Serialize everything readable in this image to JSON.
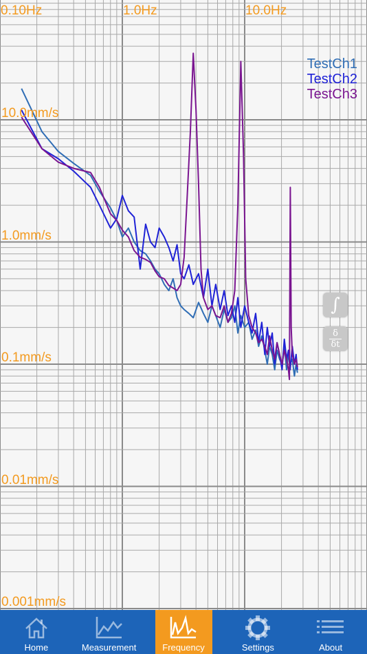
{
  "chart_data": {
    "type": "line",
    "x_scale": "log",
    "y_scale": "log",
    "xlim": [
      0.1,
      30
    ],
    "ylim": [
      0.001,
      30
    ],
    "x_ticks": [
      {
        "value": 0.1,
        "label": "0.10Hz"
      },
      {
        "value": 1.0,
        "label": "1.0Hz"
      },
      {
        "value": 10.0,
        "label": "10.0Hz"
      }
    ],
    "y_ticks": [
      {
        "value": 10.0,
        "label": "10.0mm/s"
      },
      {
        "value": 1.0,
        "label": "1.0mm/s"
      },
      {
        "value": 0.1,
        "label": "0.1mm/s"
      },
      {
        "value": 0.01,
        "label": "0.01mm/s"
      },
      {
        "value": 0.001,
        "label": "0.001mm/s"
      }
    ],
    "grid": true,
    "legend_position": "top-right",
    "series": [
      {
        "name": "TestCh1",
        "color": "#2f6db5",
        "points": [
          [
            0.15,
            18
          ],
          [
            0.22,
            8
          ],
          [
            0.3,
            5.5
          ],
          [
            0.4,
            4.4
          ],
          [
            0.55,
            3.5
          ],
          [
            0.65,
            2.6
          ],
          [
            0.8,
            1.9
          ],
          [
            0.9,
            1.5
          ],
          [
            1.0,
            1.1
          ],
          [
            1.12,
            1.3
          ],
          [
            1.25,
            1.0
          ],
          [
            1.4,
            0.85
          ],
          [
            1.55,
            0.8
          ],
          [
            1.7,
            0.7
          ],
          [
            1.85,
            0.6
          ],
          [
            2.0,
            0.55
          ],
          [
            2.2,
            0.45
          ],
          [
            2.4,
            0.4
          ],
          [
            2.6,
            0.5
          ],
          [
            2.8,
            0.35
          ],
          [
            3.0,
            0.3
          ],
          [
            3.2,
            0.28
          ],
          [
            3.5,
            0.26
          ],
          [
            3.8,
            0.24
          ],
          [
            4.2,
            0.32
          ],
          [
            4.6,
            0.26
          ],
          [
            5.0,
            0.22
          ],
          [
            5.4,
            0.3
          ],
          [
            5.8,
            0.25
          ],
          [
            6.3,
            0.2
          ],
          [
            6.8,
            0.28
          ],
          [
            7.3,
            0.22
          ],
          [
            7.8,
            0.24
          ],
          [
            8.3,
            0.3
          ],
          [
            8.8,
            0.18
          ],
          [
            9.3,
            0.25
          ],
          [
            10.0,
            0.2
          ],
          [
            10.8,
            0.22
          ],
          [
            11.5,
            0.16
          ],
          [
            12.3,
            0.19
          ],
          [
            13.0,
            0.14
          ],
          [
            13.8,
            0.17
          ],
          [
            14.6,
            0.13
          ],
          [
            15.3,
            0.1
          ],
          [
            16.0,
            0.14
          ],
          [
            16.8,
            0.12
          ],
          [
            17.6,
            0.09
          ],
          [
            18.4,
            0.13
          ],
          [
            19.3,
            0.11
          ],
          [
            20.2,
            0.1
          ],
          [
            21.1,
            0.14
          ],
          [
            22.0,
            0.09
          ],
          [
            22.8,
            0.12
          ],
          [
            23.5,
            0.1
          ],
          [
            24.5,
            0.11
          ],
          [
            25.5,
            0.08
          ],
          [
            26.3,
            0.1
          ],
          [
            27.0,
            0.085
          ]
        ]
      },
      {
        "name": "TestCh2",
        "color": "#1f22d6",
        "points": [
          [
            0.15,
            12
          ],
          [
            0.22,
            5.8
          ],
          [
            0.3,
            4.8
          ],
          [
            0.4,
            3.8
          ],
          [
            0.55,
            2.8
          ],
          [
            0.65,
            2.0
          ],
          [
            0.8,
            1.3
          ],
          [
            0.9,
            1.55
          ],
          [
            1.0,
            2.4
          ],
          [
            1.12,
            1.8
          ],
          [
            1.25,
            1.6
          ],
          [
            1.4,
            0.6
          ],
          [
            1.55,
            1.4
          ],
          [
            1.7,
            1.0
          ],
          [
            1.85,
            0.9
          ],
          [
            2.0,
            1.3
          ],
          [
            2.2,
            1.1
          ],
          [
            2.4,
            0.9
          ],
          [
            2.6,
            0.7
          ],
          [
            2.8,
            0.95
          ],
          [
            3.0,
            0.55
          ],
          [
            3.2,
            0.5
          ],
          [
            3.5,
            0.65
          ],
          [
            3.8,
            0.45
          ],
          [
            4.2,
            0.55
          ],
          [
            4.6,
            0.35
          ],
          [
            5.0,
            0.6
          ],
          [
            5.4,
            0.3
          ],
          [
            5.8,
            0.45
          ],
          [
            6.3,
            0.28
          ],
          [
            6.8,
            0.4
          ],
          [
            7.3,
            0.25
          ],
          [
            7.8,
            0.3
          ],
          [
            8.3,
            0.22
          ],
          [
            8.8,
            0.35
          ],
          [
            9.3,
            0.2
          ],
          [
            10.0,
            0.3
          ],
          [
            10.8,
            0.22
          ],
          [
            11.5,
            0.18
          ],
          [
            12.3,
            0.26
          ],
          [
            13.0,
            0.15
          ],
          [
            13.8,
            0.22
          ],
          [
            14.6,
            0.12
          ],
          [
            15.3,
            0.2
          ],
          [
            16.0,
            0.14
          ],
          [
            16.8,
            0.18
          ],
          [
            17.6,
            0.1
          ],
          [
            18.4,
            0.15
          ],
          [
            19.3,
            0.12
          ],
          [
            20.2,
            0.09
          ],
          [
            21.1,
            0.16
          ],
          [
            22.0,
            0.11
          ],
          [
            22.8,
            0.13
          ],
          [
            23.5,
            0.09
          ],
          [
            24.5,
            0.14
          ],
          [
            25.5,
            0.1
          ],
          [
            26.3,
            0.12
          ],
          [
            27.0,
            0.09
          ]
        ]
      },
      {
        "name": "TestCh3",
        "color": "#7a1590",
        "points": [
          [
            0.15,
            10.5
          ],
          [
            0.22,
            5.8
          ],
          [
            0.3,
            4.5
          ],
          [
            0.4,
            4.0
          ],
          [
            0.55,
            3.7
          ],
          [
            0.65,
            2.8
          ],
          [
            0.8,
            1.7
          ],
          [
            0.9,
            1.5
          ],
          [
            1.0,
            1.25
          ],
          [
            1.12,
            1.1
          ],
          [
            1.25,
            0.85
          ],
          [
            1.4,
            0.75
          ],
          [
            1.55,
            0.72
          ],
          [
            1.7,
            0.68
          ],
          [
            1.85,
            0.58
          ],
          [
            2.0,
            0.52
          ],
          [
            2.2,
            0.5
          ],
          [
            2.4,
            0.44
          ],
          [
            2.6,
            0.42
          ],
          [
            2.8,
            0.4
          ],
          [
            3.0,
            0.45
          ],
          [
            3.2,
            0.75
          ],
          [
            3.4,
            2.5
          ],
          [
            3.6,
            8.0
          ],
          [
            3.8,
            35.0
          ],
          [
            4.0,
            12.0
          ],
          [
            4.2,
            3.0
          ],
          [
            4.4,
            0.6
          ],
          [
            4.6,
            0.35
          ],
          [
            5.0,
            0.28
          ],
          [
            5.4,
            0.3
          ],
          [
            5.8,
            0.25
          ],
          [
            6.3,
            0.24
          ],
          [
            6.8,
            0.3
          ],
          [
            7.3,
            0.22
          ],
          [
            7.8,
            0.26
          ],
          [
            8.3,
            0.4
          ],
          [
            8.8,
            2.0
          ],
          [
            9.3,
            30.0
          ],
          [
            9.8,
            5.0
          ],
          [
            10.2,
            0.5
          ],
          [
            10.8,
            0.25
          ],
          [
            11.5,
            0.2
          ],
          [
            12.3,
            0.18
          ],
          [
            13.0,
            0.15
          ],
          [
            13.8,
            0.16
          ],
          [
            14.6,
            0.14
          ],
          [
            15.3,
            0.12
          ],
          [
            16.0,
            0.17
          ],
          [
            16.8,
            0.13
          ],
          [
            17.6,
            0.11
          ],
          [
            18.4,
            0.15
          ],
          [
            19.3,
            0.12
          ],
          [
            20.2,
            0.1
          ],
          [
            21.1,
            0.13
          ],
          [
            22.0,
            0.11
          ],
          [
            22.8,
            0.09
          ],
          [
            23.2,
            0.075
          ],
          [
            23.6,
            2.8
          ],
          [
            24.0,
            0.2
          ],
          [
            24.5,
            0.12
          ],
          [
            25.5,
            0.1
          ],
          [
            26.3,
            0.11
          ],
          [
            27.0,
            0.095
          ]
        ]
      }
    ]
  },
  "side_buttons": {
    "integrate": "∫",
    "diff_num": "δ",
    "diff_den": "δt"
  },
  "tabbar": {
    "colors": {
      "background": "#1d64b8",
      "active": "#f39a1f",
      "tick_label": "#f39a1f"
    },
    "tabs": [
      {
        "label": "Home",
        "icon": "home-icon",
        "active": false
      },
      {
        "label": "Measurement",
        "icon": "measurement-chart-icon",
        "active": false
      },
      {
        "label": "Frequency",
        "icon": "frequency-chart-icon",
        "active": true
      },
      {
        "label": "Settings",
        "icon": "gear-icon",
        "active": false
      },
      {
        "label": "About",
        "icon": "list-icon",
        "active": false
      }
    ]
  }
}
